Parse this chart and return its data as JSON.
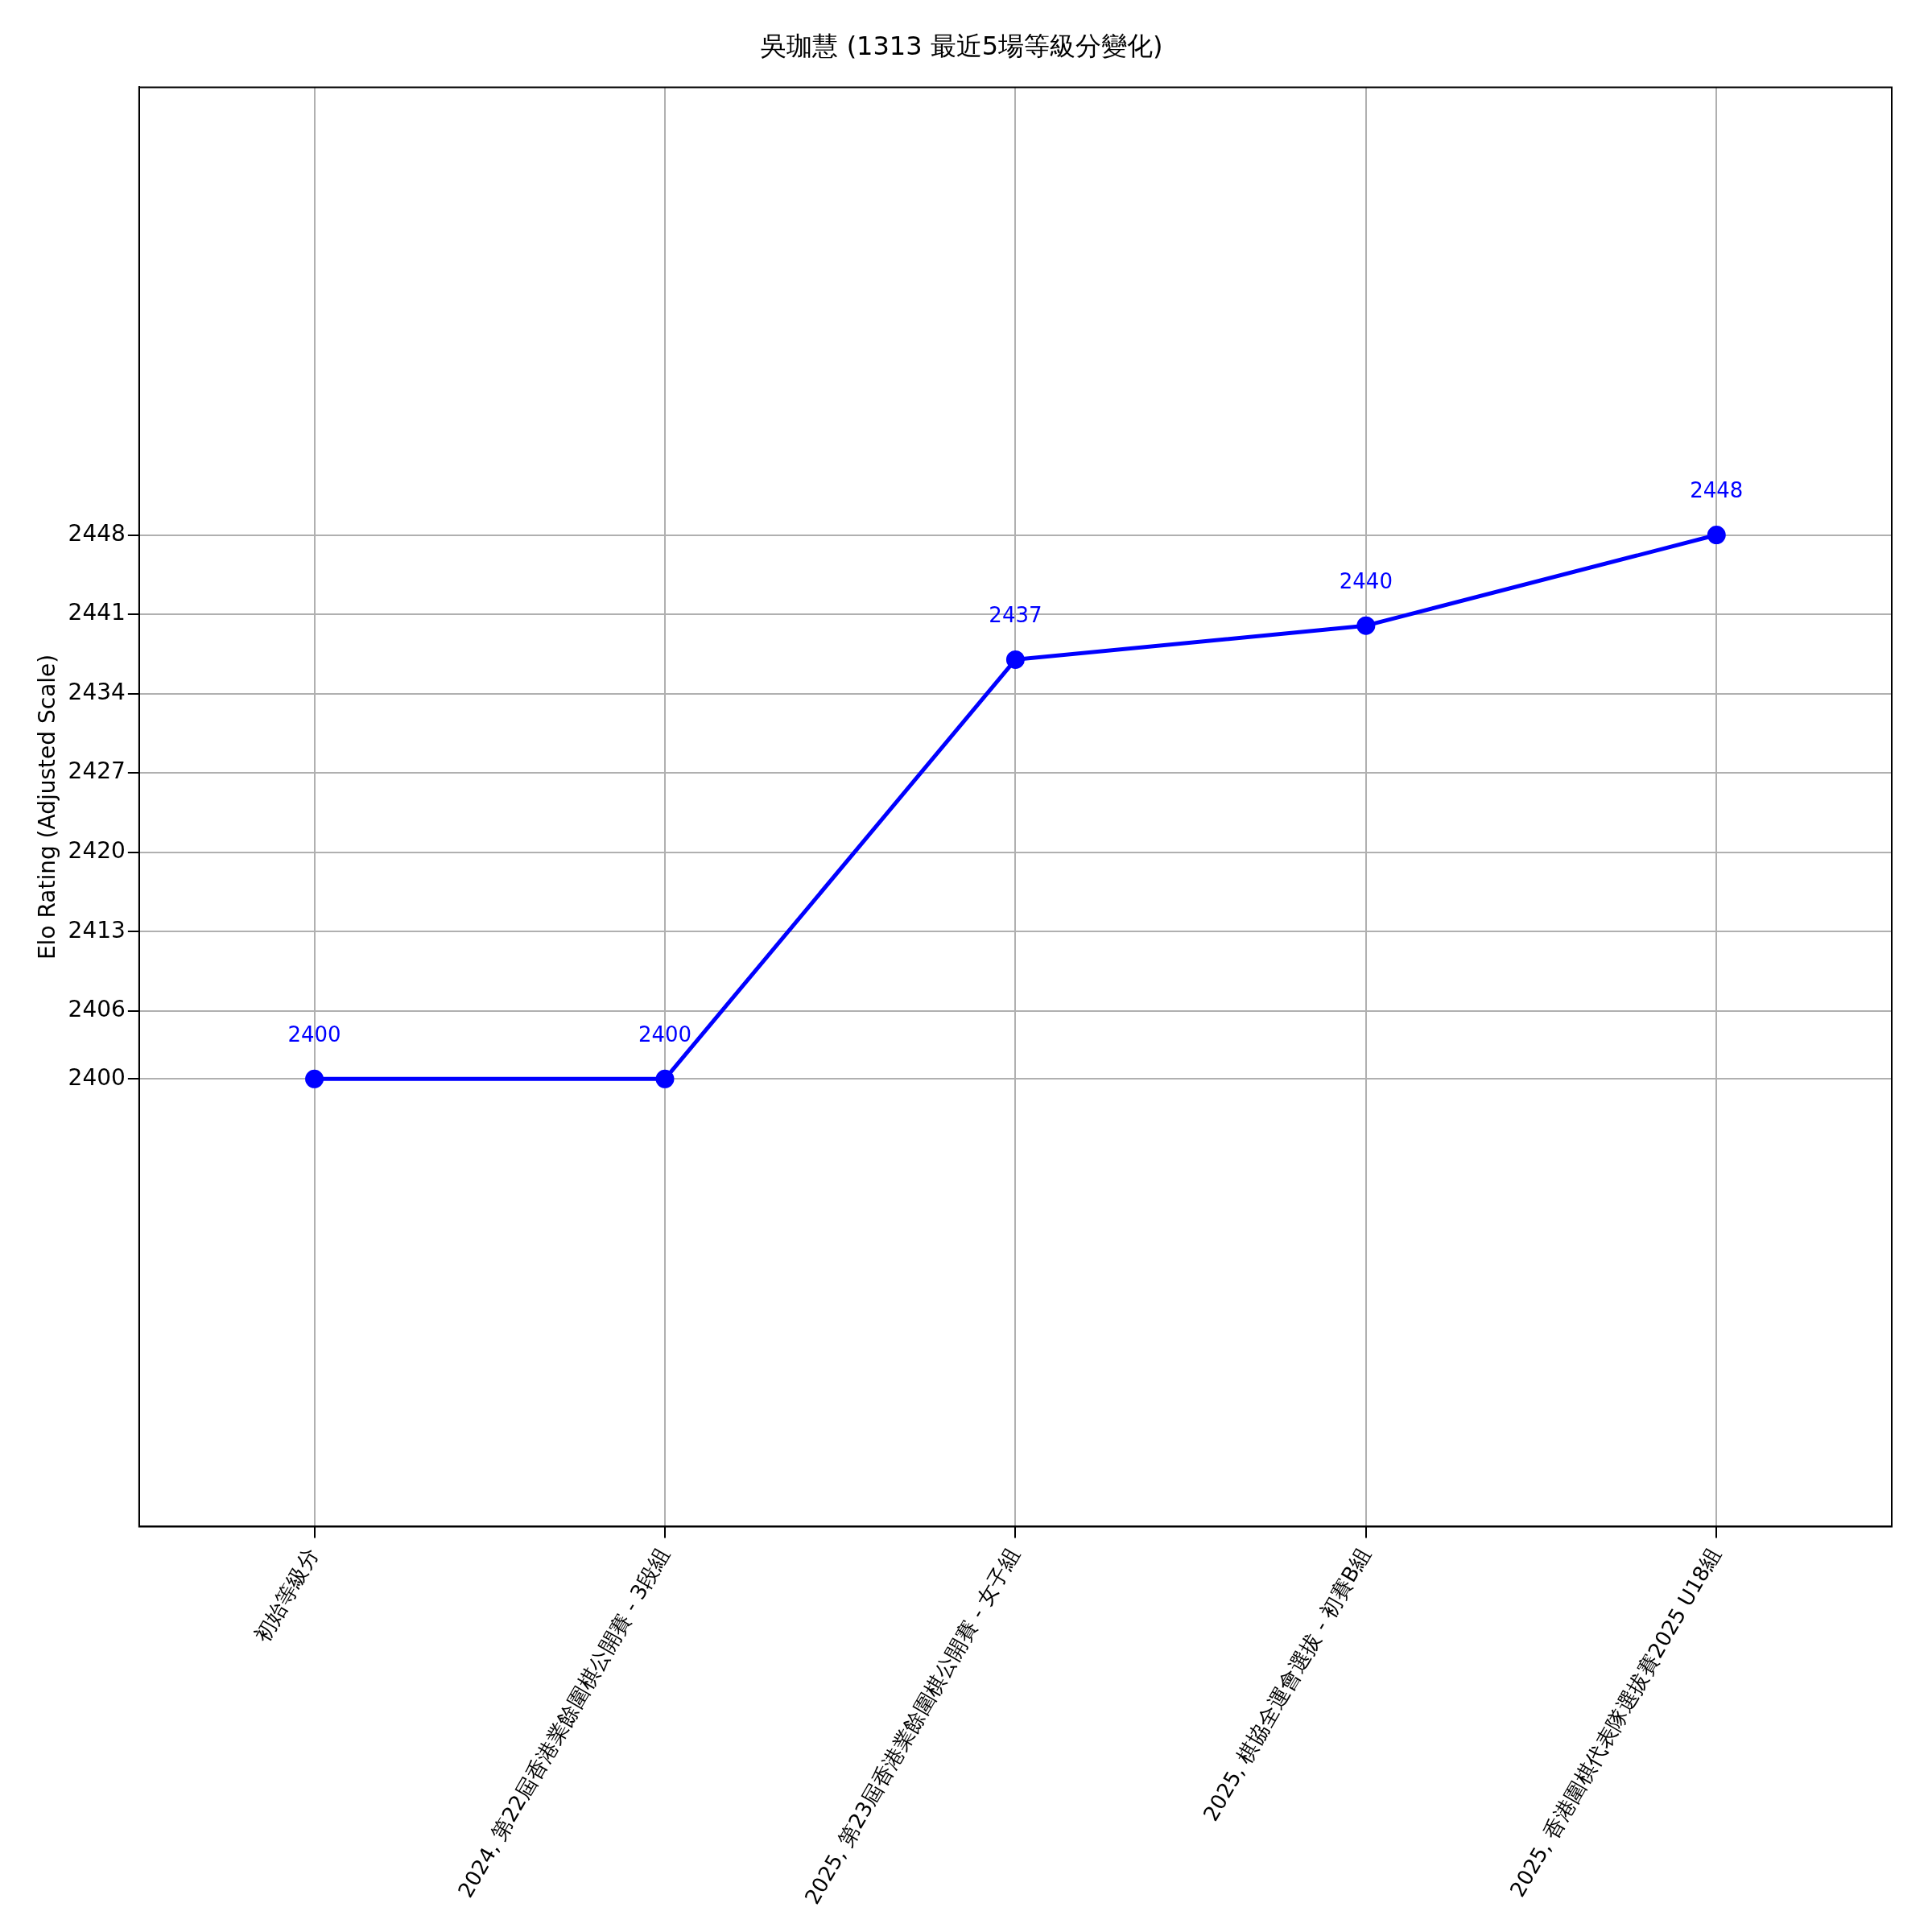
{
  "chart_data": {
    "type": "line",
    "title": "吳珈慧 (1313 最近5場等級分變化)",
    "ylabel": "Elo Rating (Adjusted Scale)",
    "categories": [
      "初始等級分",
      "2024, 第22屆香港業餘圍棋公開賽 - 3段組",
      "2025, 第23屆香港業餘圍棋公開賽 - 女子組",
      "2025, 棋協全運會選拔 - 初賽B組",
      "2025, 香港圍棋代表隊選拔賽2025 U18組"
    ],
    "series": [
      {
        "color": "#0000ff",
        "values": [
          2400,
          2400,
          2437,
          2440,
          2448
        ]
      }
    ],
    "ylim": [
      2360.5,
      2487.5
    ],
    "yticks": [
      2400,
      2406,
      2413,
      2420,
      2427,
      2434,
      2441,
      2448
    ],
    "grid": true,
    "legend": false,
    "marker": "circle",
    "line_style": "solid",
    "data_labels": true
  }
}
